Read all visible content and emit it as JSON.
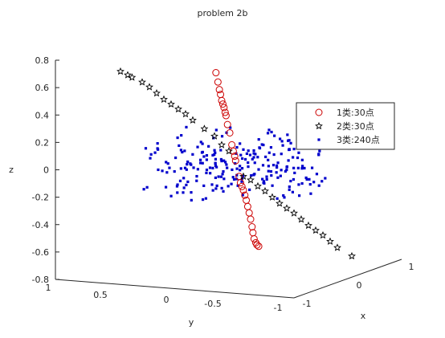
{
  "chart_data": {
    "type": "scatter",
    "title": "problem 2b",
    "xlabel": "x",
    "ylabel": "y",
    "zlabel": "z",
    "zlim": [
      -0.8,
      0.8
    ],
    "z_ticks": [
      "-0.8",
      "-0.6",
      "-0.4",
      "-0.2",
      "0",
      "0.2",
      "0.4",
      "0.6",
      "0.8"
    ],
    "y_ticks": [
      "0.5",
      "0",
      "-0.5",
      "-1"
    ],
    "y_tick_left": "1",
    "x_ticks": [
      "-1",
      "0",
      "1"
    ],
    "grid": false,
    "legend_position": "top-right",
    "series": [
      {
        "name": "1类:30点",
        "marker": "circle",
        "color": "#cc0000",
        "points": [
          [
            0.7,
            0.7,
            0.58
          ],
          [
            0.63,
            0.63,
            0.52
          ],
          [
            0.58,
            0.58,
            0.47
          ],
          [
            0.54,
            0.54,
            0.44
          ],
          [
            0.5,
            0.5,
            0.4
          ],
          [
            0.46,
            0.46,
            0.38
          ],
          [
            0.38,
            0.38,
            0.33
          ],
          [
            0.3,
            0.3,
            0.25
          ],
          [
            0.22,
            0.22,
            0.2
          ],
          [
            0.05,
            0.05,
            0.05
          ],
          [
            0.02,
            0.02,
            0.02
          ],
          [
            -0.15,
            -0.15,
            -0.12
          ],
          [
            -0.2,
            -0.2,
            -0.14
          ],
          [
            -0.25,
            -0.25,
            -0.16
          ],
          [
            -0.3,
            -0.3,
            -0.19
          ],
          [
            -0.35,
            -0.35,
            -0.22
          ],
          [
            -0.45,
            -0.45,
            -0.3
          ],
          [
            -0.5,
            -0.5,
            -0.34
          ],
          [
            -0.55,
            -0.55,
            -0.39
          ],
          [
            -0.58,
            -0.58,
            -0.43
          ],
          [
            -0.62,
            -0.62,
            -0.47
          ],
          [
            -0.68,
            -0.68,
            -0.49
          ],
          [
            -0.72,
            -0.72,
            -0.5
          ],
          [
            -0.78,
            -0.78,
            -0.5
          ],
          [
            0.35,
            0.35,
            0.31
          ],
          [
            0.42,
            0.42,
            0.36
          ],
          [
            -0.4,
            -0.4,
            -0.26
          ],
          [
            -0.1,
            -0.1,
            -0.08
          ],
          [
            0.1,
            0.1,
            0.08
          ],
          [
            0.15,
            0.15,
            0.12
          ]
        ]
      },
      {
        "name": "2类:30点",
        "marker": "star",
        "color": "#000000",
        "points": [
          [
            -0.75,
            0.75,
            0.72
          ],
          [
            -0.72,
            0.72,
            0.7
          ],
          [
            -0.6,
            0.6,
            0.62
          ],
          [
            -0.55,
            0.55,
            0.57
          ],
          [
            -0.5,
            0.5,
            0.52
          ],
          [
            -0.4,
            0.4,
            0.44
          ],
          [
            -0.35,
            0.35,
            0.4
          ],
          [
            -0.3,
            0.3,
            0.35
          ],
          [
            -0.22,
            0.22,
            0.28
          ],
          [
            -0.15,
            0.15,
            0.22
          ],
          [
            -0.1,
            0.1,
            0.15
          ],
          [
            -0.05,
            0.05,
            0.1
          ],
          [
            0.05,
            -0.05,
            -0.1
          ],
          [
            0.1,
            -0.1,
            -0.13
          ],
          [
            0.15,
            -0.15,
            -0.18
          ],
          [
            0.2,
            -0.2,
            -0.22
          ],
          [
            0.3,
            -0.3,
            -0.32
          ],
          [
            0.35,
            -0.35,
            -0.36
          ],
          [
            0.45,
            -0.45,
            -0.45
          ],
          [
            0.5,
            -0.5,
            -0.5
          ],
          [
            0.6,
            -0.6,
            -0.58
          ],
          [
            0.65,
            -0.65,
            -0.63
          ],
          [
            0.7,
            -0.7,
            -0.68
          ],
          [
            0.8,
            -0.8,
            -0.75
          ],
          [
            -0.8,
            0.8,
            0.75
          ],
          [
            -0.65,
            0.65,
            0.66
          ],
          [
            -0.45,
            0.45,
            0.48
          ],
          [
            0.25,
            -0.25,
            -0.27
          ],
          [
            0.4,
            -0.4,
            -0.4
          ],
          [
            0.55,
            -0.55,
            -0.54
          ]
        ]
      },
      {
        "name": "3类:240点",
        "marker": "dot",
        "color": "#0000cc",
        "cluster": "horizontal disk of radius ~0.9 in x-y, z within about ±0.2",
        "count": 240
      }
    ]
  }
}
